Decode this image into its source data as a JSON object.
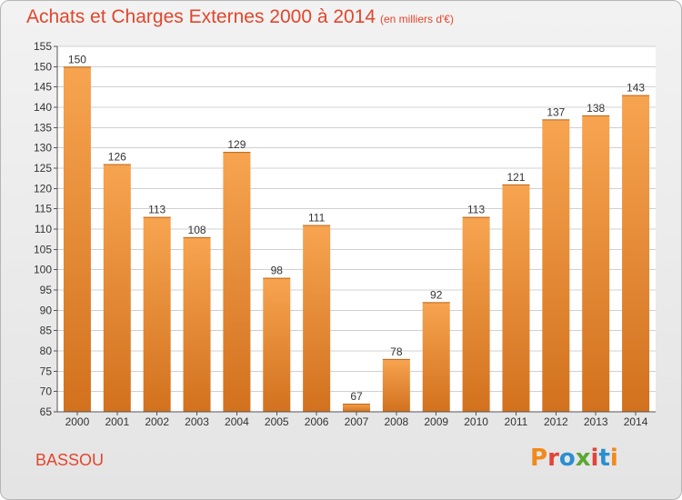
{
  "header": {
    "title": "Achats et Charges Externes 2000 à 2014",
    "subtitle": "(en milliers d'€)"
  },
  "footer": {
    "commune": "BASSOU",
    "brand": "Proxiti",
    "brand_colors": [
      "#f08a1c",
      "#e0443a",
      "#2a8fd1",
      "#5aa832",
      "#e0443a",
      "#2a8fd1",
      "#f08a1c"
    ]
  },
  "chart_data": {
    "type": "bar",
    "title": "Achats et Charges Externes 2000 à 2014",
    "subtitle": "(en milliers d'€)",
    "categories": [
      "2000",
      "2001",
      "2002",
      "2003",
      "2004",
      "2005",
      "2006",
      "2007",
      "2008",
      "2009",
      "2010",
      "2011",
      "2012",
      "2013",
      "2014"
    ],
    "values": [
      150,
      126,
      113,
      108,
      129,
      98,
      111,
      67,
      78,
      92,
      113,
      121,
      137,
      138,
      143
    ],
    "ylim": [
      65,
      155
    ],
    "yticks": [
      65,
      70,
      75,
      80,
      85,
      90,
      95,
      100,
      105,
      110,
      115,
      120,
      125,
      130,
      135,
      140,
      145,
      150,
      155
    ],
    "grid": true,
    "bar_color_top": "#f7a450",
    "bar_color_bottom": "#d2711e"
  }
}
